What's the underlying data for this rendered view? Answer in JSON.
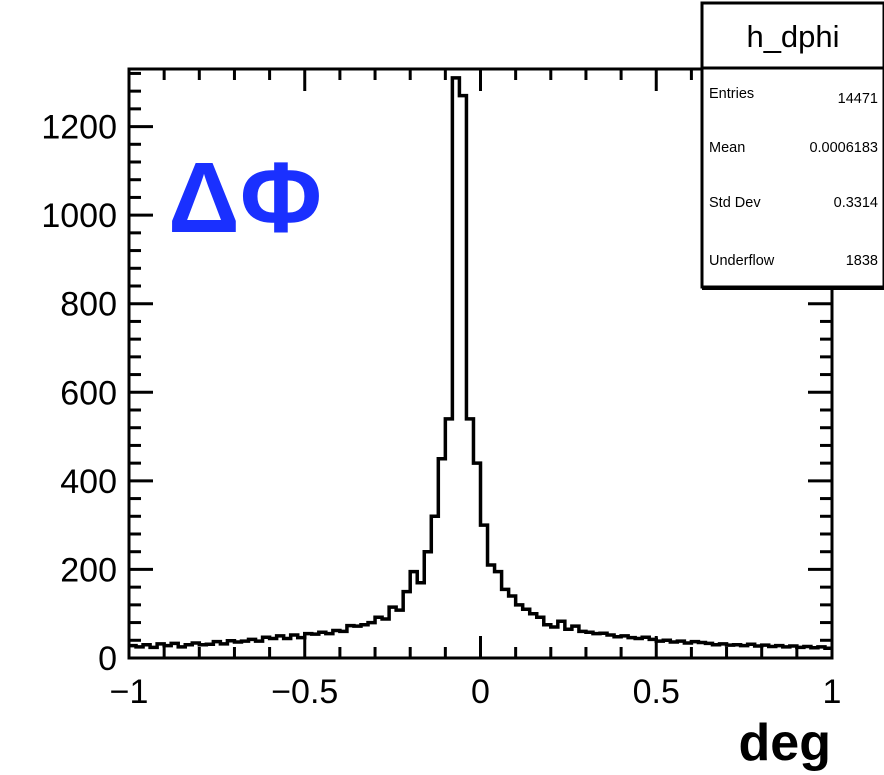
{
  "chart_data": {
    "type": "histogram",
    "xlabel": "deg",
    "ylabel": "",
    "xlim": [
      -1,
      1
    ],
    "ylim": [
      0,
      1330
    ],
    "x_ticks": [
      -1,
      -0.5,
      0,
      0.5,
      1
    ],
    "x_tick_labels": [
      "−1",
      "−0.5",
      "0",
      "0.5",
      "1"
    ],
    "y_ticks": [
      0,
      200,
      400,
      600,
      800,
      1000,
      1200
    ],
    "y_tick_labels": [
      "0",
      "200",
      "400",
      "600",
      "800",
      "1000",
      "1200"
    ],
    "annotation": {
      "text": "ΔΦ",
      "color": "#1a30ff"
    },
    "line_color": "#000000",
    "bins": {
      "x_edges_start": -1,
      "bin_width": 0.02,
      "counts": [
        28,
        25,
        30,
        24,
        32,
        28,
        33,
        25,
        30,
        34,
        30,
        31,
        37,
        32,
        39,
        36,
        38,
        42,
        38,
        47,
        44,
        50,
        44,
        52,
        46,
        55,
        54,
        58,
        55,
        62,
        60,
        73,
        72,
        75,
        80,
        92,
        88,
        115,
        108,
        150,
        195,
        170,
        240,
        320,
        450,
        540,
        1310,
        1270,
        540,
        440,
        300,
        210,
        195,
        155,
        140,
        120,
        110,
        100,
        92,
        75,
        70,
        83,
        65,
        72,
        60,
        58,
        55,
        56,
        52,
        48,
        50,
        46,
        44,
        47,
        42,
        38,
        40,
        36,
        38,
        34,
        37,
        35,
        33,
        30,
        32,
        29,
        30,
        28,
        31,
        27,
        29,
        26,
        28,
        25,
        27,
        24,
        26,
        23,
        25,
        22
      ]
    },
    "stats_box": {
      "title": "h_dphi",
      "rows": [
        {
          "label": "Entries",
          "value": "14471"
        },
        {
          "label": "Mean",
          "value": "0.0006183"
        },
        {
          "label": "Std Dev",
          "value": "0.3314"
        },
        {
          "label": "Underflow",
          "value": "1838"
        }
      ]
    }
  }
}
